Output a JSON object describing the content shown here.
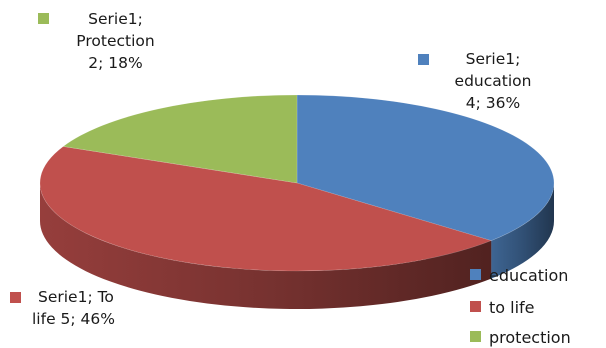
{
  "chart_data": {
    "type": "pie",
    "three_d": true,
    "series_name": "Serie1",
    "categories": [
      "education",
      "to life",
      "protection"
    ],
    "values": [
      4,
      5,
      2
    ],
    "percentages": [
      36,
      46,
      18
    ],
    "colors": [
      "#4f81bd",
      "#c0504d",
      "#9bbb59"
    ],
    "data_labels": [
      {
        "line1": "Serie1;",
        "line2": "education",
        "line3": "4; 36%"
      },
      {
        "line1": "Serie1; To",
        "line2": "life 5; 46%"
      },
      {
        "line1": "Serie1;",
        "line2": "Protection",
        "line3": "2; 18%"
      }
    ],
    "legend": {
      "position": "bottom-right",
      "items": [
        "education",
        "to life",
        "protection"
      ]
    }
  }
}
